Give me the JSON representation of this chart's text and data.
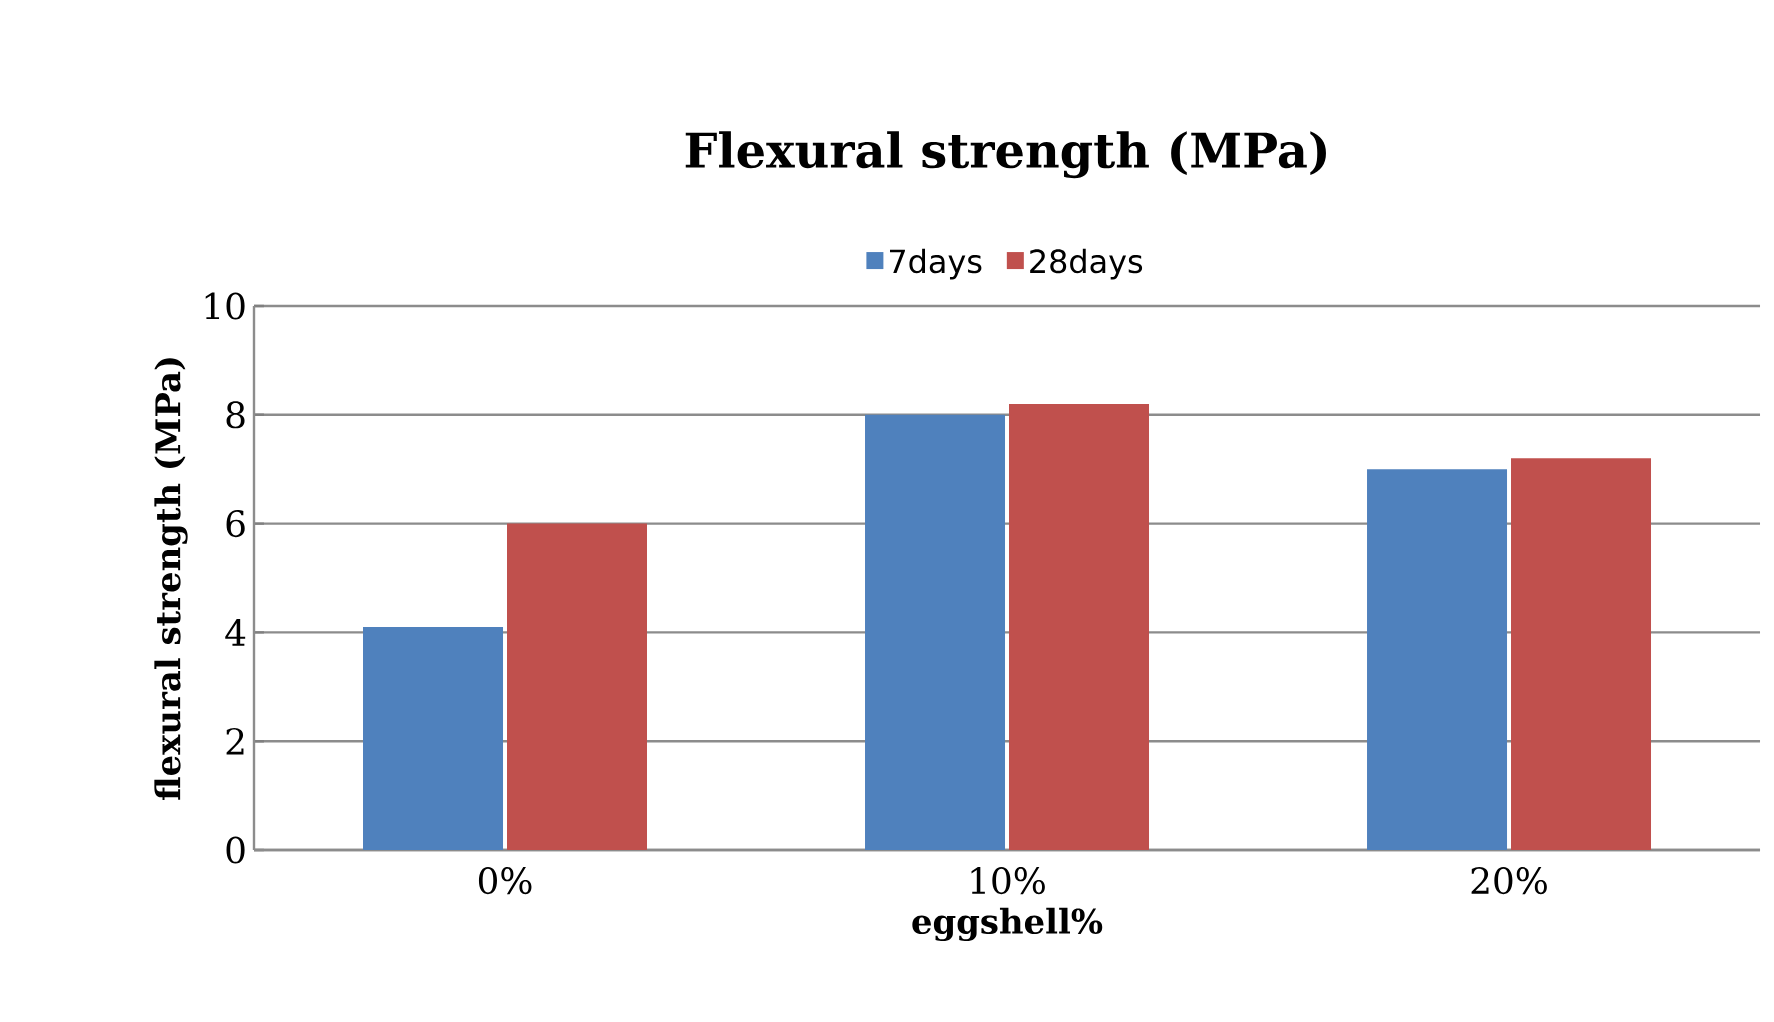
{
  "chart_data": {
    "type": "bar",
    "title": "Flexural strength (MPa)",
    "xlabel": "eggshell%",
    "ylabel": "flexural strength (MPa)",
    "categories": [
      "0%",
      "10%",
      "20%"
    ],
    "series": [
      {
        "name": "7days",
        "color": "#4f81bd",
        "values": [
          4.1,
          8,
          7
        ]
      },
      {
        "name": "28days",
        "color": "#c0504d",
        "values": [
          6,
          8.2,
          7.2
        ]
      }
    ],
    "ylim": [
      0,
      10
    ],
    "yticks": [
      0,
      2,
      4,
      6,
      8,
      10
    ],
    "grid": "y",
    "legend": "top"
  }
}
